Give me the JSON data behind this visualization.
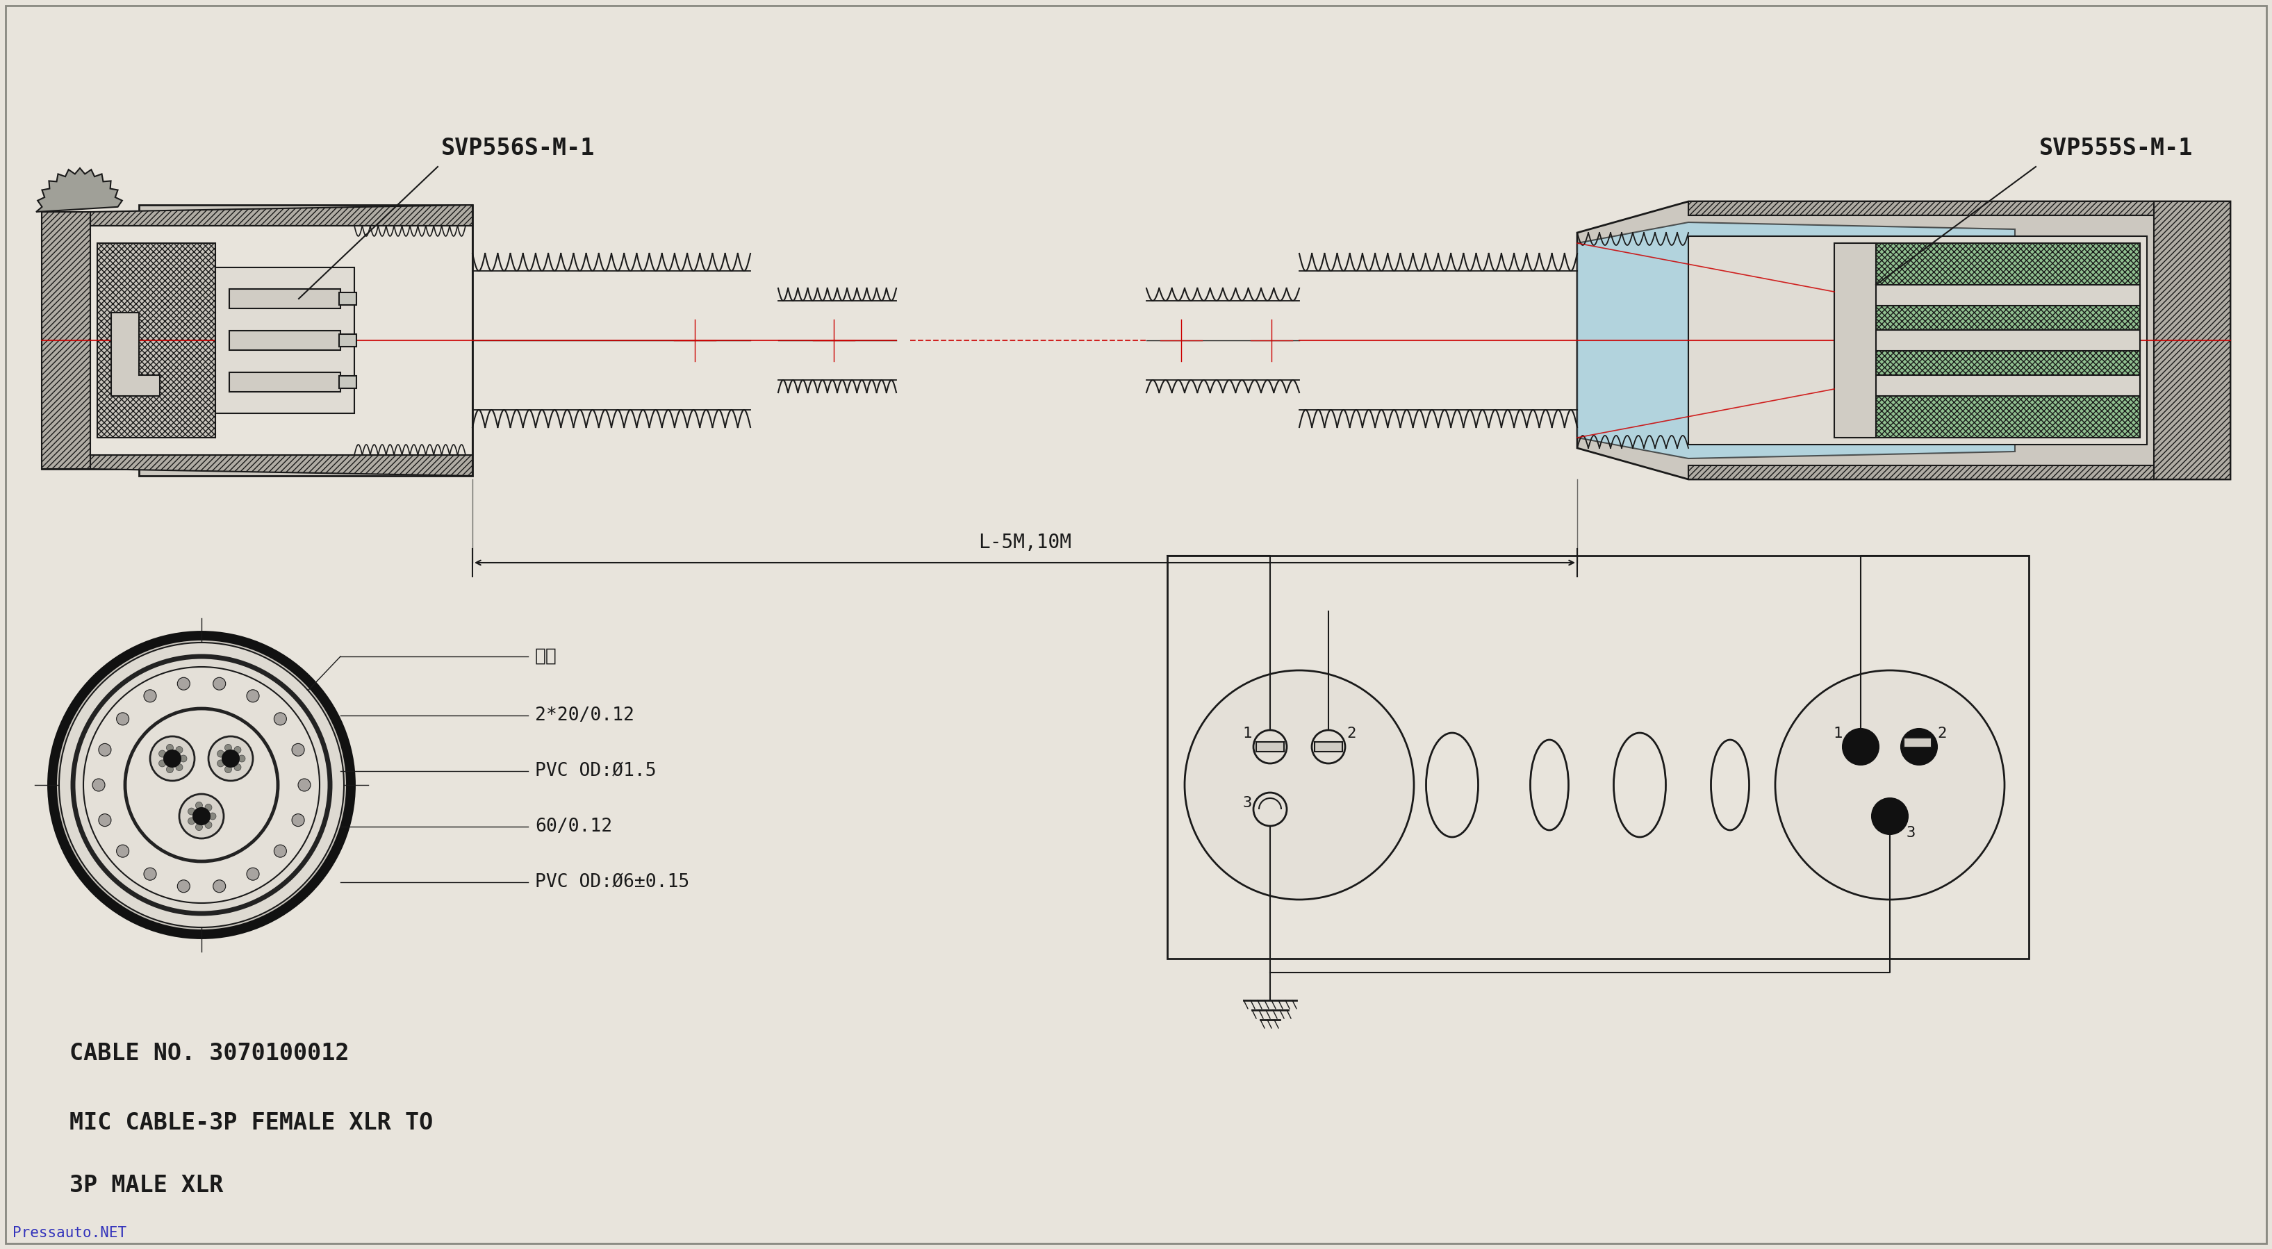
{
  "bg_color": "#e8e4dc",
  "line_color": "#1a1a1a",
  "red_line_color": "#cc0000",
  "blue_fill": "#a8d8ea",
  "green_fill": "#90c090",
  "label_svp556": "SVP556S-M-1",
  "label_svp555": "SVP555S-M-1",
  "label_length": "L-5M,10M",
  "label_cotton": "棉线",
  "label_wire1": "2*20/0.12",
  "label_pvc1": "PVC OD:Ø1.5",
  "label_wire2": "60/0.12",
  "label_pvc2": "PVC OD:Ø6±0.15",
  "label_cable_no": "CABLE NO. 3070100012",
  "label_desc1": "MIC CABLE-3P FEMALE XLR TO",
  "label_desc2": "3P MALE XLR",
  "label_pressauto": "Pressauto.NET"
}
